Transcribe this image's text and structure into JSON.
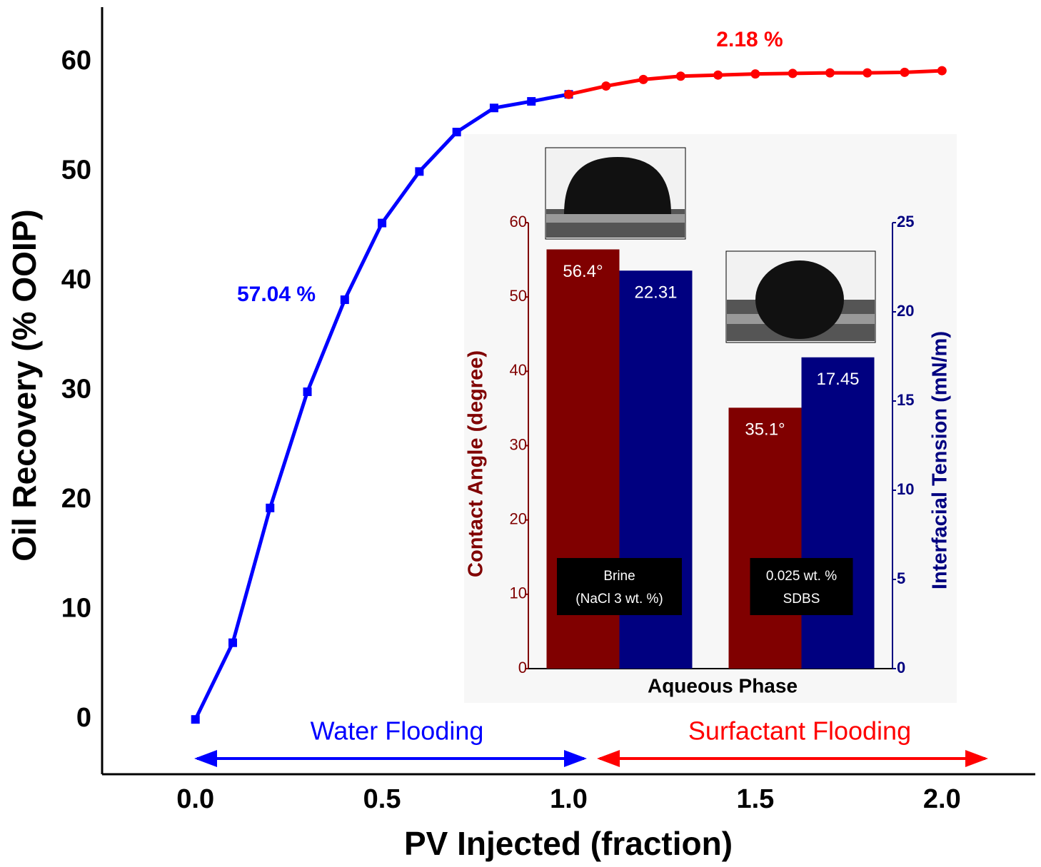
{
  "chart_data": [
    {
      "type": "line",
      "xlabel": "PV Injected (fraction)",
      "ylabel": "Oil Recovery (% OOIP)",
      "xlim": [
        -0.25,
        2.25
      ],
      "ylim": [
        -5,
        65
      ],
      "xticks": [
        {
          "value": 0,
          "label": "0.0"
        },
        0.5,
        {
          "value": 1,
          "label": "1.0"
        },
        1.5,
        {
          "value": 2,
          "label": "2.0"
        }
      ],
      "yticks": [
        0,
        10,
        20,
        30,
        40,
        50,
        60
      ],
      "series": [
        {
          "color": "#0000ff",
          "marker": "square",
          "x": [
            0,
            0.1,
            0.2,
            0.3,
            0.4,
            0.5,
            0.6,
            0.7,
            0.8,
            0.9,
            1.0
          ],
          "values": [
            0,
            7.0,
            19.3,
            29.9,
            38.3,
            45.3,
            50.0,
            53.6,
            55.8,
            56.4,
            57.04
          ]
        },
        {
          "color": "#ff0000",
          "marker": "circle",
          "x": [
            1.0,
            1.1,
            1.2,
            1.3,
            1.4,
            1.5,
            1.6,
            1.7,
            1.8,
            1.9,
            2.0
          ],
          "values": [
            57.04,
            57.8,
            58.4,
            58.7,
            58.8,
            58.9,
            58.95,
            59.0,
            59.0,
            59.05,
            59.2
          ]
        }
      ],
      "annotations": [
        {
          "text": "57.04 %",
          "color": "#0000ff"
        },
        {
          "text": "2.18 %",
          "color": "#ff0000"
        },
        {
          "text": "Water Flooding",
          "color": "#0000ff"
        },
        {
          "text": "Surfactant Flooding",
          "color": "#ff0000"
        }
      ]
    },
    {
      "type": "bar",
      "xlabel": "Aqueous Phase",
      "ylabel": "Contact Angle (degree)",
      "y2label": "Interfacial Tension (mN/m)",
      "categories": [
        [
          "Brine",
          "(NaCl 3 wt. %)"
        ],
        [
          "0.025 wt. %",
          "SDBS"
        ]
      ],
      "ylim": [
        0,
        60
      ],
      "yticks": [
        0,
        10,
        20,
        30,
        40,
        50,
        60
      ],
      "y2lim": [
        0,
        25
      ],
      "y2ticks": [
        0,
        5,
        10,
        15,
        20,
        25
      ],
      "series": [
        {
          "color": "#800000",
          "values": [
            56.4,
            35.1
          ],
          "value_labels": [
            "56.4°",
            "35.1°"
          ]
        },
        {
          "color": "#000080",
          "axis": "y2",
          "values": [
            22.31,
            17.45
          ]
        }
      ]
    }
  ]
}
